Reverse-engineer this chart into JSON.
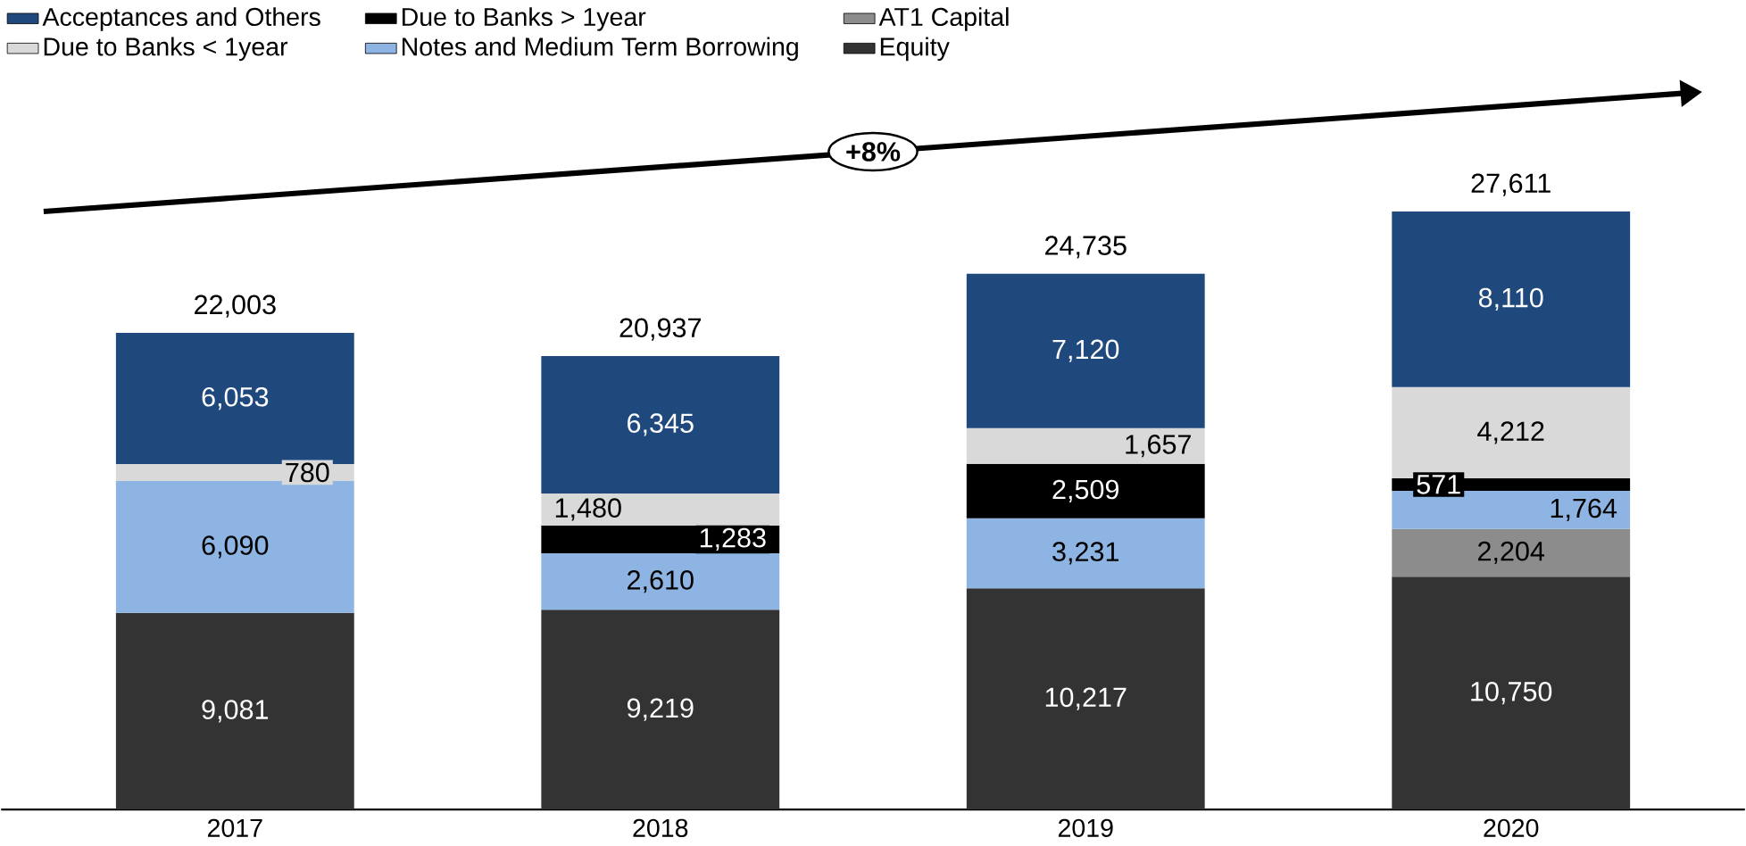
{
  "chart_data": {
    "type": "bar",
    "stacked": true,
    "categories": [
      "2017",
      "2018",
      "2019",
      "2020"
    ],
    "series": [
      {
        "name": "Equity",
        "color": "#333333",
        "values": [
          9081,
          9219,
          10217,
          10750
        ],
        "value_labels": [
          "9,081",
          "9,219",
          "10,217",
          "10,750"
        ]
      },
      {
        "name": "AT1 Capital",
        "color": "#8c8c8c",
        "values": [
          null,
          null,
          null,
          2204
        ],
        "value_labels": [
          null,
          null,
          null,
          "2,204"
        ]
      },
      {
        "name": "Notes and Medium Term Borrowing",
        "color": "#8db4e2",
        "values": [
          6090,
          2610,
          3231,
          1764
        ],
        "value_labels": [
          "6,090",
          "2,610",
          "3,231",
          "1,764"
        ]
      },
      {
        "name": "Due to Banks > 1year",
        "color": "#000000",
        "values": [
          null,
          1283,
          2509,
          571
        ],
        "value_labels": [
          null,
          "1,283",
          "2,509",
          "571"
        ]
      },
      {
        "name": "Due to Banks < 1year",
        "color": "#d9d9d9",
        "values": [
          780,
          1480,
          1657,
          4212
        ],
        "value_labels": [
          "780",
          "1,480",
          "1,657",
          "4,212"
        ]
      },
      {
        "name": "Acceptances and Others",
        "color": "#1f497d",
        "values": [
          6053,
          6345,
          7120,
          8110
        ],
        "value_labels": [
          "6,053",
          "6,345",
          "7,120",
          "8,110"
        ]
      }
    ],
    "totals": [
      "22,003",
      "20,937",
      "24,735",
      "27,611"
    ],
    "legend": "top",
    "annotations": [
      "+8%"
    ]
  }
}
